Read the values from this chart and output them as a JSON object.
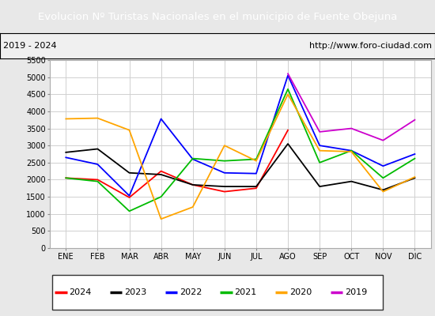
{
  "title": "Evolucion Nº Turistas Nacionales en el municipio de Fuente Obejuna",
  "subtitle_left": "2019 - 2024",
  "subtitle_right": "http://www.foro-ciudad.com",
  "title_bg_color": "#4d7ebf",
  "title_text_color": "#ffffff",
  "months": [
    "ENE",
    "FEB",
    "MAR",
    "ABR",
    "MAY",
    "JUN",
    "JUL",
    "AGO",
    "SEP",
    "OCT",
    "NOV",
    "DIC"
  ],
  "ylim": [
    0,
    5500
  ],
  "yticks": [
    0,
    500,
    1000,
    1500,
    2000,
    2500,
    3000,
    3500,
    4000,
    4500,
    5000,
    5500
  ],
  "series": {
    "2024": {
      "color": "#ff0000",
      "data": [
        2050,
        2000,
        1480,
        2250,
        1850,
        1650,
        1750,
        3450,
        null,
        null,
        null,
        null
      ]
    },
    "2023": {
      "color": "#000000",
      "data": [
        2800,
        2900,
        2200,
        2150,
        1850,
        1800,
        1800,
        3050,
        1800,
        1950,
        1700,
        2050
      ]
    },
    "2022": {
      "color": "#0000ff",
      "data": [
        2650,
        2450,
        1530,
        3780,
        2600,
        2200,
        2180,
        5050,
        3000,
        2850,
        2400,
        2750
      ]
    },
    "2021": {
      "color": "#00bb00",
      "data": [
        2050,
        1950,
        1080,
        1500,
        2620,
        2550,
        2600,
        4650,
        2500,
        2850,
        2050,
        2620
      ]
    },
    "2020": {
      "color": "#ffa500",
      "data": [
        3780,
        3800,
        3450,
        850,
        1200,
        3000,
        2550,
        4500,
        2850,
        2820,
        1650,
        2080
      ]
    },
    "2019": {
      "color": "#cc00cc",
      "data": [
        null,
        null,
        null,
        null,
        null,
        null,
        null,
        5100,
        3400,
        3500,
        3150,
        3750
      ]
    }
  },
  "grid_color": "#d0d0d0",
  "plot_bg_color": "#ffffff",
  "fig_bg_color": "#e8e8e8",
  "legend_order": [
    "2024",
    "2023",
    "2022",
    "2021",
    "2020",
    "2019"
  ]
}
